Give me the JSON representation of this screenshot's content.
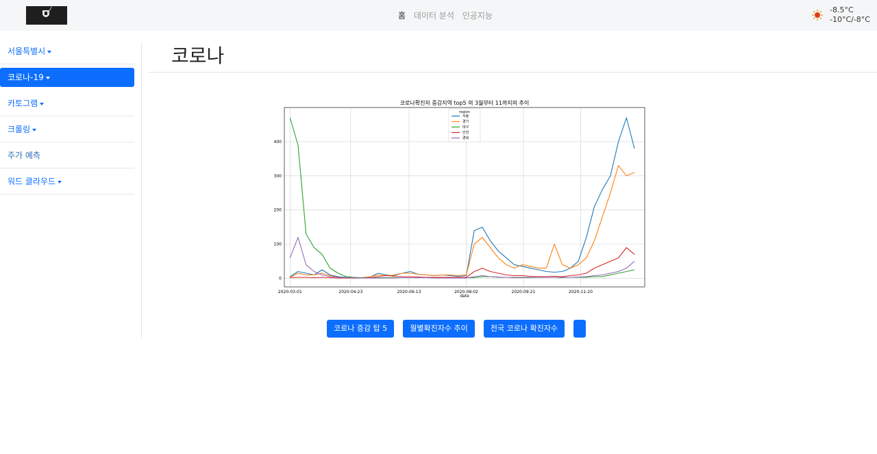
{
  "navbar": {
    "links": [
      {
        "label": "홈",
        "active": true
      },
      {
        "label": "데이터 분석",
        "active": false
      },
      {
        "label": "인공지능",
        "active": false
      }
    ],
    "weather": {
      "current": "-8.5°C",
      "range": "-10°C/-8°C",
      "icon": "sun-icon"
    }
  },
  "sidebar": {
    "items": [
      {
        "label": "서울특별시",
        "dropdown": true
      },
      {
        "label": "코로나-19",
        "dropdown": true,
        "active": true
      },
      {
        "label": "카토그램",
        "dropdown": true
      },
      {
        "label": "크롤링",
        "dropdown": true
      },
      {
        "label": "주가 예측",
        "dropdown": false
      },
      {
        "label": "워드 클라우드",
        "dropdown": true
      }
    ]
  },
  "main": {
    "title": "코로나",
    "buttons": [
      "코로나 증감 탑 5",
      "월별확진자수 추이",
      "전국 코로나 확진자수",
      ""
    ]
  },
  "chart_data": {
    "type": "line",
    "title": "코로나확진자 증감지역 top5 의 3월부터 11까지의 추이",
    "xlabel": "date",
    "ylabel": "",
    "x_ticks": [
      "2020-03-01",
      "2020-04-23",
      "2020-06-13",
      "2020-08-02",
      "2020-09-21",
      "2020-11-10"
    ],
    "y_ticks": [
      0,
      100,
      200,
      300,
      400
    ],
    "ylim": [
      -25,
      500
    ],
    "grid": true,
    "legend": {
      "title": "region",
      "placement": "top-center"
    },
    "x_dates": [
      "2020-03-01",
      "2020-03-08",
      "2020-03-15",
      "2020-03-22",
      "2020-03-29",
      "2020-04-05",
      "2020-04-12",
      "2020-04-19",
      "2020-04-26",
      "2020-05-03",
      "2020-05-10",
      "2020-05-17",
      "2020-05-24",
      "2020-05-31",
      "2020-06-07",
      "2020-06-14",
      "2020-06-21",
      "2020-06-28",
      "2020-07-05",
      "2020-07-12",
      "2020-07-19",
      "2020-07-26",
      "2020-08-02",
      "2020-08-09",
      "2020-08-16",
      "2020-08-23",
      "2020-08-30",
      "2020-09-06",
      "2020-09-13",
      "2020-09-20",
      "2020-09-27",
      "2020-10-04",
      "2020-10-11",
      "2020-10-18",
      "2020-10-25",
      "2020-11-01",
      "2020-11-08",
      "2020-11-15",
      "2020-11-22",
      "2020-11-29",
      "2020-12-06",
      "2020-12-13",
      "2020-12-20",
      "2020-12-27"
    ],
    "series": [
      {
        "name": "서울",
        "color": "#1f77b4",
        "values": [
          5,
          20,
          15,
          10,
          25,
          10,
          5,
          3,
          2,
          2,
          4,
          15,
          10,
          8,
          15,
          20,
          12,
          10,
          8,
          10,
          8,
          6,
          8,
          140,
          150,
          110,
          80,
          60,
          40,
          35,
          30,
          25,
          20,
          18,
          20,
          30,
          50,
          120,
          210,
          260,
          300,
          400,
          470,
          380
        ]
      },
      {
        "name": "경기",
        "color": "#ff7f0e",
        "values": [
          3,
          15,
          10,
          10,
          15,
          8,
          3,
          2,
          2,
          2,
          5,
          10,
          8,
          10,
          15,
          15,
          12,
          10,
          8,
          10,
          10,
          8,
          10,
          100,
          120,
          90,
          60,
          40,
          30,
          40,
          35,
          30,
          30,
          100,
          40,
          30,
          40,
          60,
          110,
          180,
          250,
          330,
          300,
          310
        ]
      },
      {
        "name": "대구",
        "color": "#2ca02c",
        "values": [
          470,
          390,
          130,
          90,
          70,
          30,
          15,
          5,
          3,
          2,
          2,
          2,
          2,
          2,
          2,
          2,
          2,
          2,
          2,
          2,
          2,
          2,
          2,
          2,
          5,
          5,
          3,
          3,
          2,
          2,
          2,
          3,
          3,
          3,
          2,
          3,
          3,
          3,
          5,
          5,
          10,
          15,
          20,
          25
        ]
      },
      {
        "name": "인천",
        "color": "#d62728",
        "values": [
          2,
          3,
          3,
          2,
          3,
          2,
          1,
          1,
          1,
          1,
          2,
          5,
          8,
          6,
          5,
          5,
          4,
          3,
          3,
          3,
          3,
          3,
          3,
          20,
          30,
          20,
          15,
          10,
          8,
          8,
          6,
          5,
          5,
          6,
          5,
          8,
          10,
          15,
          30,
          40,
          50,
          60,
          90,
          70
        ]
      },
      {
        "name": "경북",
        "color": "#9467bd",
        "values": [
          60,
          120,
          40,
          20,
          10,
          5,
          3,
          2,
          2,
          1,
          1,
          1,
          1,
          1,
          2,
          2,
          2,
          2,
          1,
          1,
          1,
          1,
          1,
          5,
          8,
          5,
          4,
          3,
          3,
          3,
          3,
          3,
          3,
          3,
          3,
          3,
          4,
          5,
          8,
          10,
          15,
          20,
          30,
          50
        ]
      }
    ]
  }
}
